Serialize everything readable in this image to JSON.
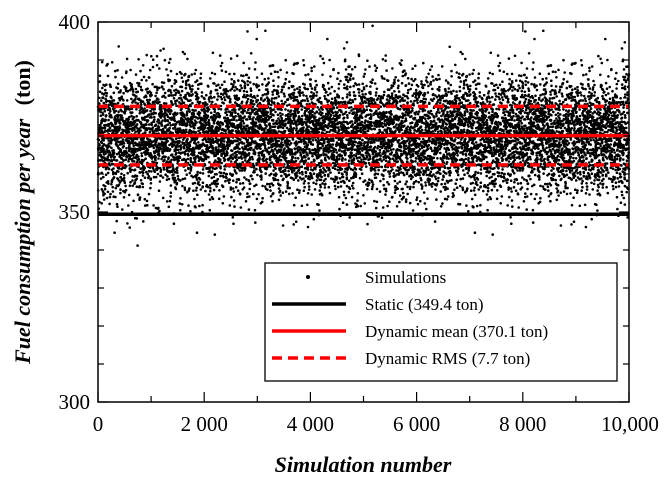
{
  "chart_data": {
    "type": "scatter",
    "title": "",
    "xlabel": "Simulation number",
    "ylabel": "Fuel consumption per year",
    "ylabel_unit": "(ton)",
    "xlim": [
      0,
      10000
    ],
    "ylim": [
      300,
      400
    ],
    "x_ticks": [
      {
        "value": 0,
        "label": "0"
      },
      {
        "value": 2000,
        "label": "2 000"
      },
      {
        "value": 4000,
        "label": "4 000"
      },
      {
        "value": 6000,
        "label": "6 000"
      },
      {
        "value": 8000,
        "label": "8 000"
      },
      {
        "value": 10000,
        "label": "10,000"
      }
    ],
    "y_ticks": [
      {
        "value": 300,
        "label": "300"
      },
      {
        "value": 350,
        "label": "350"
      },
      {
        "value": 400,
        "label": "400"
      }
    ],
    "x_minor_step": 1000,
    "y_minor_step": 10,
    "grid": false,
    "legend_position": "bottom-right",
    "scatter": {
      "name": "Simulations",
      "color": "#000000",
      "count": 10000,
      "mean": 370.1,
      "std": 7.7
    },
    "lines": [
      {
        "name": "Static (349.4 ton)",
        "y": 349.4,
        "color": "#000000",
        "style": "solid"
      },
      {
        "name": "Dynamic mean (370.1 ton)",
        "y": 370.1,
        "color": "#ff0000",
        "style": "solid"
      },
      {
        "name": "Dynamic RMS (7.7 ton)",
        "y_band": [
          362.4,
          377.8
        ],
        "color": "#ff0000",
        "style": "dashed"
      }
    ]
  }
}
